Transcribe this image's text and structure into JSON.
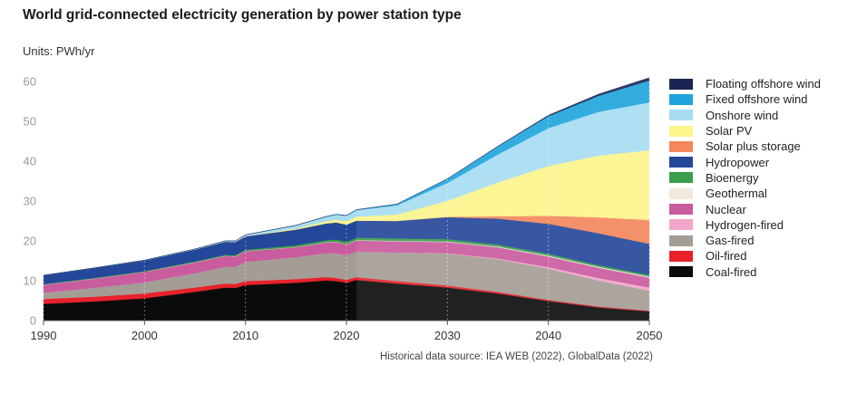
{
  "title": "World grid-connected electricity generation by power station type",
  "units": "Units: PWh/yr",
  "source": "Historical data source: IEA WEB (2022), GlobalData (2022)",
  "chart_data": {
    "type": "area",
    "stacked": true,
    "title": "World grid-connected electricity generation by power station type",
    "ylabel": "",
    "xlabel": "",
    "xlim": [
      1990,
      2050
    ],
    "ylim": [
      0,
      62
    ],
    "yticks": [
      0,
      10,
      20,
      30,
      40,
      50,
      60
    ],
    "xticks": [
      1990,
      2000,
      2010,
      2020,
      2030,
      2040,
      2050
    ],
    "grid": "vertical dotted at x ticks",
    "historical_until": 2021,
    "legend_position": "right",
    "x": [
      1990,
      1995,
      2000,
      2005,
      2008,
      2009,
      2010,
      2015,
      2018,
      2019,
      2020,
      2021,
      2025,
      2030,
      2035,
      2040,
      2045,
      2050
    ],
    "series": [
      {
        "name": "Coal-fired",
        "color": "#0b0b0b",
        "values": [
          4.2,
          4.8,
          5.6,
          7.2,
          8.3,
          8.2,
          8.9,
          9.5,
          10.1,
          9.9,
          9.5,
          10.2,
          9.3,
          8.3,
          6.8,
          4.9,
          3.3,
          2.3
        ]
      },
      {
        "name": "Oil-fired",
        "color": "#e8212b",
        "values": [
          1.2,
          1.2,
          1.2,
          1.1,
          1.0,
          1.0,
          1.0,
          0.9,
          0.8,
          0.8,
          0.7,
          0.7,
          0.6,
          0.5,
          0.4,
          0.3,
          0.25,
          0.2
        ]
      },
      {
        "name": "Gas-fired",
        "color": "#a39d95",
        "values": [
          1.6,
          2.2,
          2.8,
          3.6,
          4.2,
          4.3,
          4.8,
          5.5,
          6.0,
          6.2,
          6.2,
          6.4,
          7.2,
          8.0,
          8.2,
          7.8,
          6.5,
          5.0
        ]
      },
      {
        "name": "Hydrogen-fired",
        "color": "#f2a6c9",
        "values": [
          0,
          0,
          0,
          0,
          0,
          0,
          0,
          0,
          0,
          0,
          0,
          0,
          0,
          0.1,
          0.2,
          0.4,
          0.6,
          0.8
        ]
      },
      {
        "name": "Nuclear",
        "color": "#c95b9f",
        "values": [
          2.0,
          2.3,
          2.6,
          2.7,
          2.7,
          2.6,
          2.7,
          2.5,
          2.7,
          2.8,
          2.7,
          2.8,
          2.8,
          2.8,
          2.8,
          2.7,
          2.6,
          2.5
        ]
      },
      {
        "name": "Geothermal",
        "color": "#f1eadc",
        "values": [
          0.05,
          0.05,
          0.05,
          0.06,
          0.06,
          0.07,
          0.07,
          0.08,
          0.09,
          0.09,
          0.09,
          0.1,
          0.12,
          0.15,
          0.18,
          0.2,
          0.22,
          0.25
        ]
      },
      {
        "name": "Bioenergy",
        "color": "#3a9e4b",
        "values": [
          0.12,
          0.15,
          0.17,
          0.2,
          0.25,
          0.27,
          0.3,
          0.45,
          0.5,
          0.55,
          0.6,
          0.6,
          0.6,
          0.6,
          0.5,
          0.5,
          0.45,
          0.4
        ]
      },
      {
        "name": "Hydropower",
        "color": "#25479a",
        "values": [
          2.2,
          2.5,
          2.7,
          3.0,
          3.3,
          3.3,
          3.4,
          3.9,
          4.2,
          4.3,
          4.3,
          4.3,
          4.4,
          5.5,
          6.5,
          7.5,
          8.0,
          7.8
        ]
      },
      {
        "name": "Solar plus storage",
        "color": "#f4875c",
        "values": [
          0,
          0,
          0,
          0,
          0,
          0,
          0,
          0,
          0,
          0,
          0,
          0,
          0,
          0.1,
          0.6,
          2.0,
          4.0,
          6.0
        ]
      },
      {
        "name": "Solar PV",
        "color": "#fbf58c",
        "values": [
          0,
          0,
          0,
          0,
          0,
          0.01,
          0.03,
          0.25,
          0.55,
          0.7,
          0.8,
          1.0,
          1.6,
          4.0,
          8.5,
          12.5,
          15.5,
          17.5
        ]
      },
      {
        "name": "Onshore wind",
        "color": "#a8dcf2",
        "values": [
          0,
          0.01,
          0.03,
          0.1,
          0.2,
          0.25,
          0.33,
          0.8,
          1.1,
          1.25,
          1.4,
          1.6,
          2.3,
          4.5,
          7.0,
          9.5,
          11.0,
          12.0
        ]
      },
      {
        "name": "Fixed offshore wind",
        "color": "#1fa5dd",
        "values": [
          0,
          0,
          0,
          0,
          0,
          0,
          0,
          0.02,
          0.07,
          0.08,
          0.1,
          0.12,
          0.3,
          1.0,
          2.0,
          3.0,
          4.0,
          5.5
        ]
      },
      {
        "name": "Floating offshore wind",
        "color": "#1b2553",
        "values": [
          0,
          0,
          0,
          0,
          0,
          0,
          0,
          0,
          0,
          0,
          0,
          0,
          0,
          0.02,
          0.1,
          0.25,
          0.45,
          0.7
        ]
      }
    ]
  }
}
